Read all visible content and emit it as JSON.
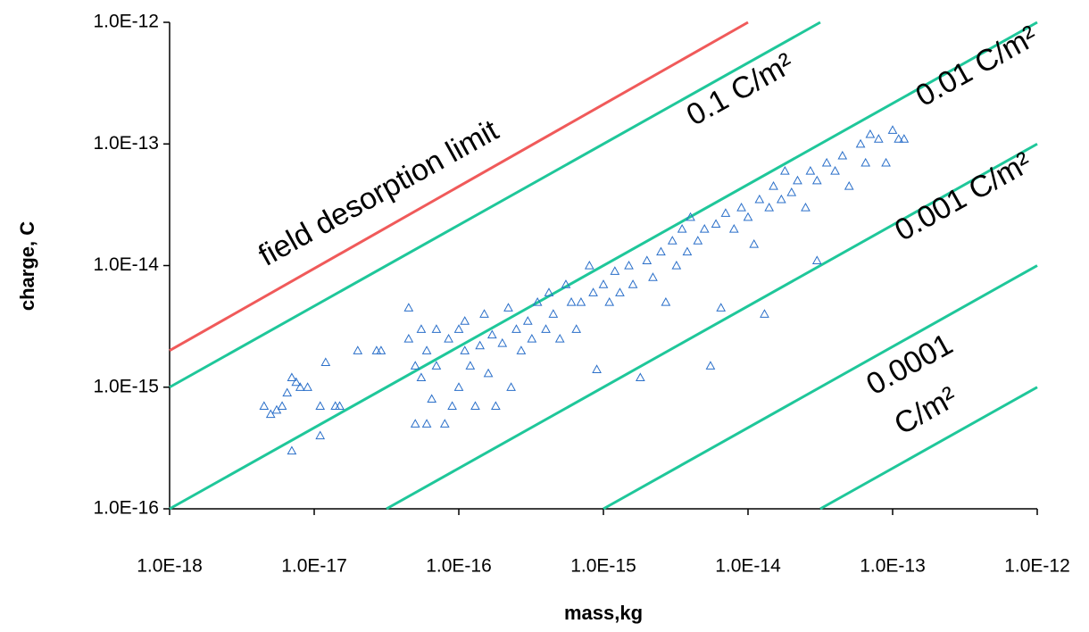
{
  "chart_data": {
    "type": "scatter",
    "xlabel": "mass,kg",
    "ylabel": "charge, C",
    "xscale": "log",
    "yscale": "log",
    "grid": false,
    "xlim": [
      1e-18,
      1e-12
    ],
    "ylim": [
      1e-16,
      1e-12
    ],
    "xticks": [
      {
        "value": 1e-18,
        "label": "1.0E-18"
      },
      {
        "value": 1e-17,
        "label": "1.0E-17"
      },
      {
        "value": 1e-16,
        "label": "1.0E-16"
      },
      {
        "value": 1e-15,
        "label": "1.0E-15"
      },
      {
        "value": 1e-14,
        "label": "1.0E-14"
      },
      {
        "value": 1e-13,
        "label": "1.0E-13"
      },
      {
        "value": 1e-12,
        "label": "1.0E-12"
      }
    ],
    "yticks": [
      {
        "value": 1e-16,
        "label": "1.0E-16"
      },
      {
        "value": 1e-15,
        "label": "1.0E-15"
      },
      {
        "value": 1e-14,
        "label": "1.0E-14"
      },
      {
        "value": 1e-13,
        "label": "1.0E-13"
      },
      {
        "value": 1e-12,
        "label": "1.0E-12"
      }
    ],
    "lines": [
      {
        "color": "#f05a5a",
        "x": [
          1e-18,
          1e-14
        ],
        "values": [
          2e-15,
          1e-12
        ]
      },
      {
        "color": "#1fc79a",
        "x": [
          1e-18,
          3.16e-14
        ],
        "values": [
          1e-15,
          1e-12
        ]
      },
      {
        "color": "#1fc79a",
        "x": [
          1e-18,
          1e-12
        ],
        "values": [
          1e-16,
          1e-12
        ]
      },
      {
        "color": "#1fc79a",
        "x": [
          3.16e-17,
          1e-12
        ],
        "values": [
          1e-16,
          1e-13
        ]
      },
      {
        "color": "#1fc79a",
        "x": [
          1e-15,
          1e-12
        ],
        "values": [
          1e-16,
          1e-14
        ]
      },
      {
        "color": "#1fc79a",
        "x": [
          3.16e-14,
          1e-12
        ],
        "values": [
          1e-16,
          1e-15
        ]
      }
    ],
    "annotations": [
      "field desorption limit",
      "0.1 C/m²",
      "0.01 C/m²",
      "0.001 C/m²",
      "0.0001",
      "C/m²"
    ],
    "series": [
      {
        "color": "#2a6fc9",
        "marker": "triangle",
        "x": [
          4.5e-18,
          5e-18,
          5.5e-18,
          6e-18,
          6.5e-18,
          7e-18,
          7.5e-18,
          7e-18,
          8e-18,
          9e-18,
          1.1e-17,
          1.1e-17,
          1.2e-17,
          1.4e-17,
          1.5e-17,
          2e-17,
          2.7e-17,
          2.9e-17,
          4.5e-17,
          4.5e-17,
          5e-17,
          5e-17,
          5.5e-17,
          5.5e-17,
          6e-17,
          6e-17,
          6.5e-17,
          7e-17,
          7e-17,
          8e-17,
          8.5e-17,
          9e-17,
          1e-16,
          1e-16,
          1.1e-16,
          1.1e-16,
          1.2e-16,
          1.3e-16,
          1.4e-16,
          1.5e-16,
          1.6e-16,
          1.7e-16,
          1.8e-16,
          2e-16,
          2.2e-16,
          2.3e-16,
          2.5e-16,
          2.7e-16,
          3e-16,
          3.2e-16,
          3.5e-16,
          4e-16,
          4.2e-16,
          4.5e-16,
          5e-16,
          5.5e-16,
          6e-16,
          6.5e-16,
          7e-16,
          8e-16,
          8.5e-16,
          9e-16,
          1e-15,
          1.1e-15,
          1.2e-15,
          1.3e-15,
          1.5e-15,
          1.6e-15,
          1.8e-15,
          2e-15,
          2.2e-15,
          2.5e-15,
          2.7e-15,
          3e-15,
          3.2e-15,
          3.5e-15,
          3.8e-15,
          4e-15,
          4.5e-15,
          5e-15,
          5.5e-15,
          6e-15,
          6.5e-15,
          7e-15,
          8e-15,
          9e-15,
          1e-14,
          1.1e-14,
          1.2e-14,
          1.3e-14,
          1.4e-14,
          1.5e-14,
          1.7e-14,
          1.8e-14,
          2e-14,
          2.2e-14,
          2.5e-14,
          2.7e-14,
          3e-14,
          3e-14,
          3.5e-14,
          4e-14,
          4.5e-14,
          5e-14,
          6e-14,
          6.5e-14,
          7e-14,
          8e-14,
          9e-14,
          1e-13,
          1.1e-13,
          1.2e-13
        ],
        "values": [
          7e-16,
          6e-16,
          6.5e-16,
          7e-16,
          9e-16,
          1.2e-15,
          1.1e-15,
          3e-16,
          1e-15,
          1e-15,
          7e-16,
          4e-16,
          1.6e-15,
          7e-16,
          7e-16,
          2e-15,
          2e-15,
          2e-15,
          4.5e-15,
          2.5e-15,
          1.5e-15,
          5e-16,
          1.2e-15,
          3e-15,
          5e-16,
          2e-15,
          8e-16,
          3e-15,
          1.5e-15,
          5e-16,
          2.5e-15,
          7e-16,
          3e-15,
          1e-15,
          3.5e-15,
          2e-15,
          1.5e-15,
          7e-16,
          2.2e-15,
          4e-15,
          1.3e-15,
          2.7e-15,
          7e-16,
          2.3e-15,
          4.5e-15,
          1e-15,
          3e-15,
          2e-15,
          3.5e-15,
          2.5e-15,
          5e-15,
          3e-15,
          6e-15,
          4e-15,
          2.5e-15,
          7e-15,
          5e-15,
          3e-15,
          5e-15,
          1e-14,
          6e-15,
          1.4e-15,
          7e-15,
          5e-15,
          9e-15,
          6e-15,
          1e-14,
          7e-15,
          1.2e-15,
          1.1e-14,
          8e-15,
          1.3e-14,
          5e-15,
          1.6e-14,
          1e-14,
          2e-14,
          1.3e-14,
          2.5e-14,
          1.6e-14,
          2e-14,
          1.5e-15,
          2.2e-14,
          4.5e-15,
          2.7e-14,
          2e-14,
          3e-14,
          2.5e-14,
          1.5e-14,
          3.5e-14,
          4e-15,
          3e-14,
          4.5e-14,
          3.5e-14,
          6e-14,
          4e-14,
          5e-14,
          3e-14,
          6e-14,
          5e-14,
          1.1e-14,
          7e-14,
          6e-14,
          8e-14,
          4.5e-14,
          1e-13,
          7e-14,
          1.2e-13,
          1.1e-13,
          7e-14,
          1.3e-13,
          1.1e-13,
          1.1e-13
        ]
      }
    ]
  }
}
